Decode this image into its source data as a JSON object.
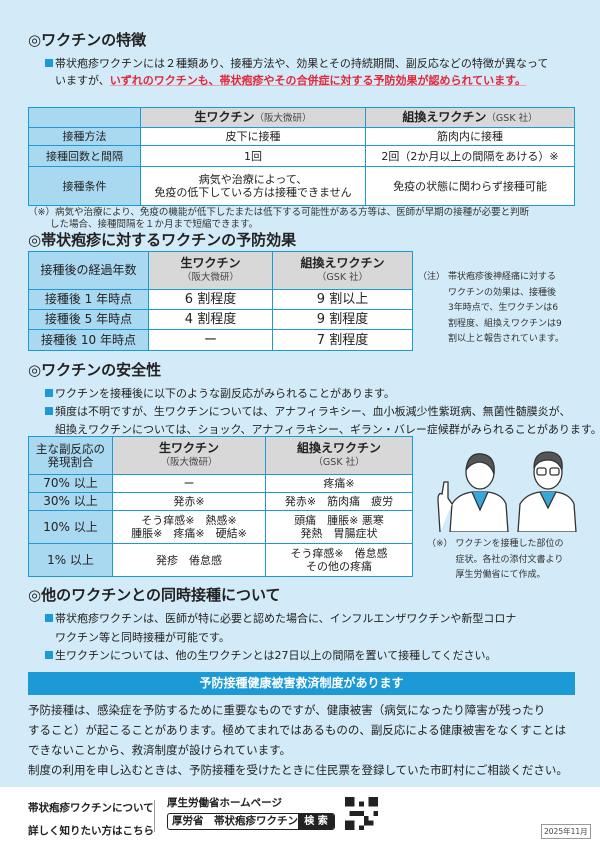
{
  "features": {
    "title": "◎ワクチンの特徴",
    "bullet_pre": "帯状疱疹ワクチンには２種類あり、接種方法や、効果とその持続期間、副反応などの特徴が異なって",
    "bullet_line2_pre": "いますが、",
    "bullet_highlight": "いずれのワクチンも、帯状疱疹やその合併症に対する予防効果が認められています。",
    "table": {
      "col1": "生ワクチン",
      "col1_sub": "（阪大微研）",
      "col2": "組換えワクチン",
      "col2_sub": "（GSK 社）",
      "rows": [
        {
          "label": "接種方法",
          "live": "皮下に接種",
          "recomb": "筋肉内に接種"
        },
        {
          "label": "接種回数と間隔",
          "live": "1回",
          "recomb": "2回（2か月以上の間隔をあける）※"
        },
        {
          "label": "接種条件",
          "live": "病気や治療によって、",
          "live2": "免疫の低下している方は接種できません",
          "recomb": "免疫の状態に関わらず接種可能"
        }
      ]
    },
    "footnote1": "（※）病気や治療により、免疫の機能が低下したまたは低下する可能性がある方等は、医師が早期の接種が必要と判断",
    "footnote2": "した場合、接種間隔を１か月まで短縮できます。"
  },
  "efficacy": {
    "title": "◎帯状疱疹に対するワクチンの予防効果",
    "header": "接種後の経過年数",
    "col1": "生ワクチン",
    "col1_sub": "（阪大微研）",
    "col2": "組換えワクチン",
    "col2_sub": "（GSK 社）",
    "rows": [
      {
        "label": "接種後 1 年時点",
        "live": "6 割程度",
        "recomb": "9 割以上"
      },
      {
        "label": "接種後 5 年時点",
        "live": "4 割程度",
        "recomb": "9 割程度"
      },
      {
        "label": "接種後 10 年時点",
        "live": "ー",
        "recomb": "7 割程度"
      }
    ],
    "note_mark": "（注）",
    "note": [
      "帯状疱疹後神経痛に対する",
      "ワクチンの効果は、接種後",
      "3年時点で、生ワクチンは6",
      "割程度、組換えワクチンは9",
      "割以上と報告されています。"
    ]
  },
  "safety": {
    "title": "◎ワクチンの安全性",
    "bullet1": "ワクチンを接種後に以下のような副反応がみられることがあります。",
    "bullet2a": "頻度は不明ですが、生ワクチンについては、アナフィラキシー、血小板減少性紫斑病、無菌性髄膜炎が、",
    "bullet2b": "組換えワクチンについては、ショック、アナフィラキシー、ギラン・バレー症候群がみられることがあります。",
    "header1": "主な副反応の",
    "header2": "発現割合",
    "col1": "生ワクチン",
    "col1_sub": "（阪大微研）",
    "col2": "組換えワクチン",
    "col2_sub": "（GSK 社）",
    "rows": [
      {
        "label": "70% 以上",
        "live": "ー",
        "recomb": "疼痛※"
      },
      {
        "label": "30% 以上",
        "live": "発赤※",
        "recomb": "発赤※　筋肉痛　疲労"
      },
      {
        "label": "10% 以上",
        "live": "そう痒感※　熱感※",
        "live2": "腫脹※　疼痛※　硬結※",
        "recomb": "頭痛　腫脹※ 悪寒",
        "recomb2": "発熱　胃腸症状"
      },
      {
        "label": "1% 以上",
        "live": "発疹　倦怠感",
        "recomb": "そう痒感※　倦怠感",
        "recomb2": "その他の疼痛"
      }
    ],
    "note_mark": "（※）",
    "note": [
      "ワクチンを接種した部位の",
      "症状。各社の添付文書より",
      "厚生労働省にて作成。"
    ]
  },
  "simultaneous": {
    "title": "◎他のワクチンとの同時接種について",
    "bullet1a": "帯状疱疹ワクチンは、医師が特に必要と認めた場合に、インフルエンザワクチンや新型コロナ",
    "bullet1b": "ワクチン等と同時接種が可能です。",
    "bullet2": "生ワクチンについては、他の生ワクチンとは27日以上の間隔を置いて接種してください。"
  },
  "relief": {
    "banner": "予防接種健康被害救済制度があります",
    "lines": [
      "予防接種は、感染症を予防するために重要なものですが、健康被害（病気になったり障害が残ったり",
      "すること）が起こることがあります。極めてまれではあるものの、副反応による健康被害をなくすことは",
      "できないことから、救済制度が設けられています。",
      "制度の利用を申し込むときは、予防接種を受けたときに住民票を登録していた市町村にご相談ください。"
    ]
  },
  "footer": {
    "lead1": "帯状疱疹ワクチンについて",
    "lead2": "詳しく知りたい方はこちら",
    "hp_label": "厚生労働省ホームページ",
    "search_query": "厚労省　帯状疱疹ワクチン",
    "search_button": "検 索",
    "date": "2025年11月"
  },
  "colors": {
    "accent": "#1c9ad6",
    "background": "#d3ebf8",
    "highlight": "#e0283a"
  }
}
